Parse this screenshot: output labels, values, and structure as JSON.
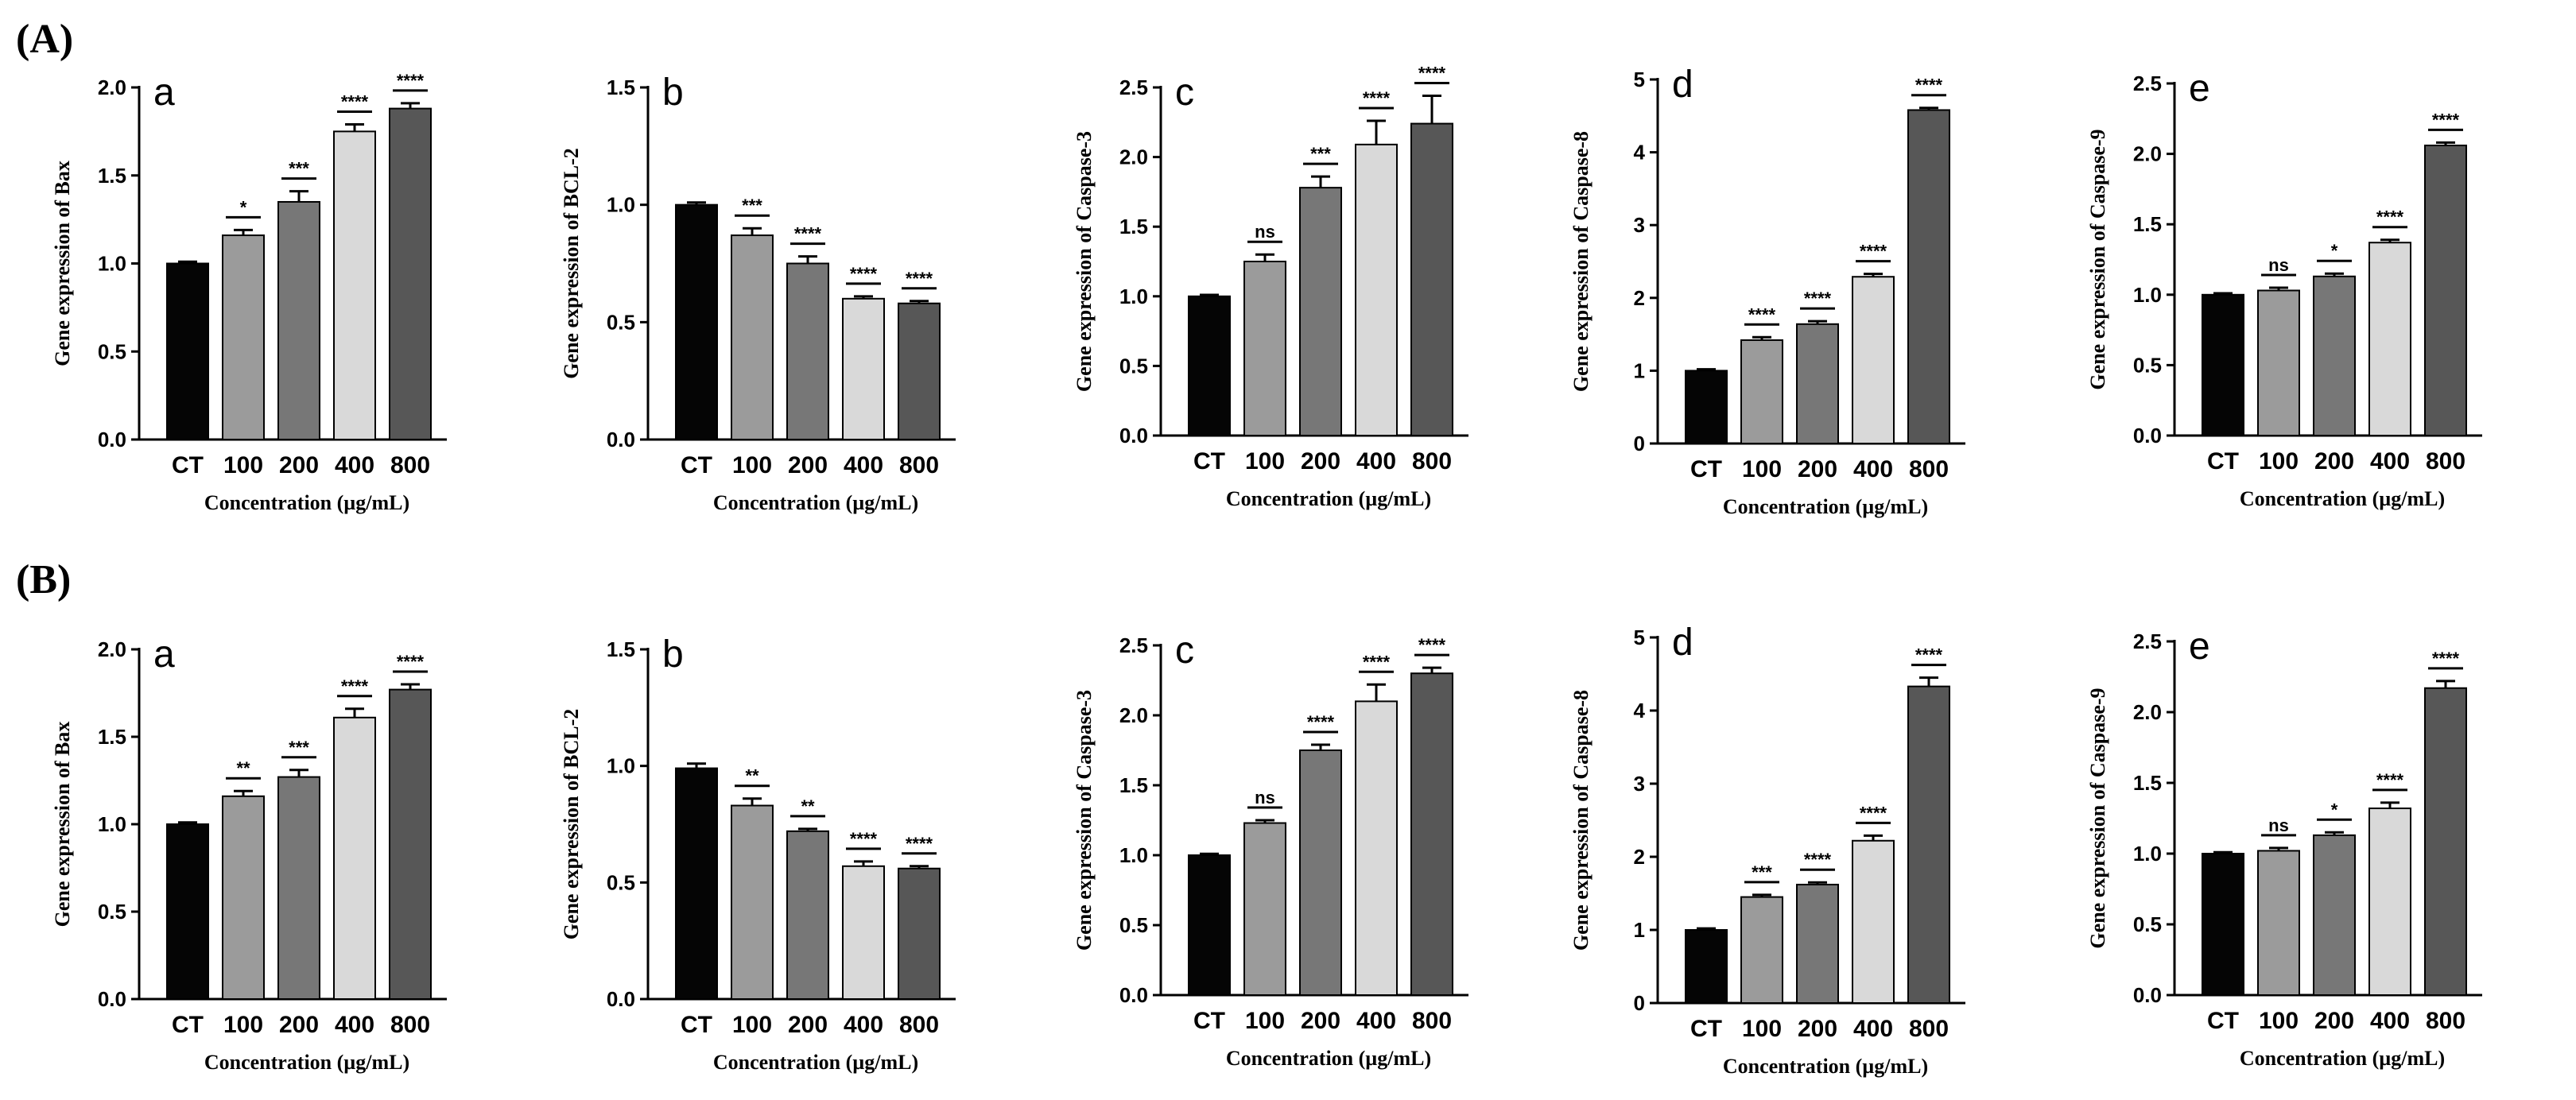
{
  "panel_labels": [
    "(A)",
    "(B)"
  ],
  "x_title": "Concentration (µg/mL)",
  "bar_colors": [
    "#050505",
    "#9b9b9b",
    "#777777",
    "#d9d9d9",
    "#575757"
  ],
  "chart_data": [
    {
      "type": "bar",
      "group": "(A)",
      "letter": "a",
      "ylabel": "Gene expression of Bax",
      "xlabel": "Concentration (µg/mL)",
      "categories": [
        "CT",
        "100",
        "200",
        "400",
        "800"
      ],
      "values": [
        1.0,
        1.16,
        1.35,
        1.75,
        1.88
      ],
      "errors": [
        0.01,
        0.03,
        0.06,
        0.04,
        0.03
      ],
      "significance": [
        "",
        "*",
        "***",
        "****",
        "****"
      ],
      "ylim": [
        0,
        2.0
      ],
      "yticks": [
        "0.0",
        "0.5",
        "1.0",
        "1.5",
        "2.0"
      ]
    },
    {
      "type": "bar",
      "group": "(A)",
      "letter": "b",
      "ylabel": "Gene expression of BCL-2",
      "xlabel": "Concentration (µg/mL)",
      "categories": [
        "CT",
        "100",
        "200",
        "400",
        "800"
      ],
      "values": [
        1.0,
        0.87,
        0.75,
        0.6,
        0.58
      ],
      "errors": [
        0.01,
        0.03,
        0.03,
        0.01,
        0.01
      ],
      "significance": [
        "",
        "***",
        "****",
        "****",
        "****"
      ],
      "ylim": [
        0,
        1.5
      ],
      "yticks": [
        "0.0",
        "0.5",
        "1.0",
        "1.5"
      ]
    },
    {
      "type": "bar",
      "group": "(A)",
      "letter": "c",
      "ylabel": "Gene expression of Caspase-3",
      "xlabel": "Concentration (µg/mL)",
      "categories": [
        "CT",
        "100",
        "200",
        "400",
        "800"
      ],
      "values": [
        1.0,
        1.25,
        1.78,
        2.09,
        2.24
      ],
      "errors": [
        0.01,
        0.05,
        0.08,
        0.17,
        0.2
      ],
      "significance": [
        "",
        "ns",
        "***",
        "****",
        "****"
      ],
      "ylim": [
        0,
        2.5
      ],
      "yticks": [
        "0.0",
        "0.5",
        "1.0",
        "1.5",
        "2.0",
        "2.5"
      ]
    },
    {
      "type": "bar",
      "group": "(A)",
      "letter": "d",
      "ylabel": "Gene expression of Caspase-8",
      "xlabel": "Concentration (µg/mL)",
      "categories": [
        "CT",
        "100",
        "200",
        "400",
        "800"
      ],
      "values": [
        1.0,
        1.42,
        1.64,
        2.29,
        4.58
      ],
      "errors": [
        0.02,
        0.04,
        0.04,
        0.04,
        0.03
      ],
      "significance": [
        "",
        "****",
        "****",
        "****",
        "****"
      ],
      "ylim": [
        0,
        5
      ],
      "yticks": [
        "0",
        "1",
        "2",
        "3",
        "4",
        "5"
      ]
    },
    {
      "type": "bar",
      "group": "(A)",
      "letter": "e",
      "ylabel": "Gene expression of Caspase-9",
      "xlabel": "Concentration (µg/mL)",
      "categories": [
        "CT",
        "100",
        "200",
        "400",
        "800"
      ],
      "values": [
        1.0,
        1.03,
        1.13,
        1.37,
        2.06
      ],
      "errors": [
        0.01,
        0.02,
        0.02,
        0.02,
        0.02
      ],
      "significance": [
        "",
        "ns",
        "*",
        "****",
        "****"
      ],
      "ylim": [
        0,
        2.5
      ],
      "yticks": [
        "0.0",
        "0.5",
        "1.0",
        "1.5",
        "2.0",
        "2.5"
      ]
    },
    {
      "type": "bar",
      "group": "(B)",
      "letter": "a",
      "ylabel": "Gene expression of Bax",
      "xlabel": "Concentration (µg/mL)",
      "categories": [
        "CT",
        "100",
        "200",
        "400",
        "800"
      ],
      "values": [
        1.0,
        1.16,
        1.27,
        1.61,
        1.77
      ],
      "errors": [
        0.01,
        0.03,
        0.04,
        0.05,
        0.03
      ],
      "significance": [
        "",
        "**",
        "***",
        "****",
        "****"
      ],
      "ylim": [
        0,
        2.0
      ],
      "yticks": [
        "0.0",
        "0.5",
        "1.0",
        "1.5",
        "2.0"
      ]
    },
    {
      "type": "bar",
      "group": "(B)",
      "letter": "b",
      "ylabel": "Gene expression of BCL-2",
      "xlabel": "Concentration (µg/mL)",
      "categories": [
        "CT",
        "100",
        "200",
        "400",
        "800"
      ],
      "values": [
        0.99,
        0.83,
        0.72,
        0.57,
        0.56
      ],
      "errors": [
        0.02,
        0.03,
        0.01,
        0.02,
        0.01
      ],
      "significance": [
        "",
        "**",
        "**",
        "****",
        "****"
      ],
      "ylim": [
        0,
        1.5
      ],
      "yticks": [
        "0.0",
        "0.5",
        "1.0",
        "1.5"
      ]
    },
    {
      "type": "bar",
      "group": "(B)",
      "letter": "c",
      "ylabel": "Gene expression of Caspase-3",
      "xlabel": "Concentration (µg/mL)",
      "categories": [
        "CT",
        "100",
        "200",
        "400",
        "800"
      ],
      "values": [
        1.0,
        1.23,
        1.75,
        2.1,
        2.3
      ],
      "errors": [
        0.01,
        0.02,
        0.04,
        0.12,
        0.04
      ],
      "significance": [
        "",
        "ns",
        "****",
        "****",
        "****"
      ],
      "ylim": [
        0,
        2.5
      ],
      "yticks": [
        "0.0",
        "0.5",
        "1.0",
        "1.5",
        "2.0",
        "2.5"
      ]
    },
    {
      "type": "bar",
      "group": "(B)",
      "letter": "d",
      "ylabel": "Gene expression of Caspase-8",
      "xlabel": "Concentration (µg/mL)",
      "categories": [
        "CT",
        "100",
        "200",
        "400",
        "800"
      ],
      "values": [
        1.0,
        1.45,
        1.62,
        2.22,
        4.33
      ],
      "errors": [
        0.02,
        0.03,
        0.03,
        0.07,
        0.12
      ],
      "significance": [
        "",
        "***",
        "****",
        "****",
        "****"
      ],
      "ylim": [
        0,
        5
      ],
      "yticks": [
        "0",
        "1",
        "2",
        "3",
        "4",
        "5"
      ]
    },
    {
      "type": "bar",
      "group": "(B)",
      "letter": "e",
      "ylabel": "Gene expression of Caspase-9",
      "xlabel": "Concentration (µg/mL)",
      "categories": [
        "CT",
        "100",
        "200",
        "400",
        "800"
      ],
      "values": [
        1.0,
        1.02,
        1.13,
        1.32,
        2.17
      ],
      "errors": [
        0.01,
        0.02,
        0.02,
        0.04,
        0.05
      ],
      "significance": [
        "",
        "ns",
        "*",
        "****",
        "****"
      ],
      "ylim": [
        0,
        2.5
      ],
      "yticks": [
        "0.0",
        "0.5",
        "1.0",
        "1.5",
        "2.0",
        "2.5"
      ]
    }
  ]
}
